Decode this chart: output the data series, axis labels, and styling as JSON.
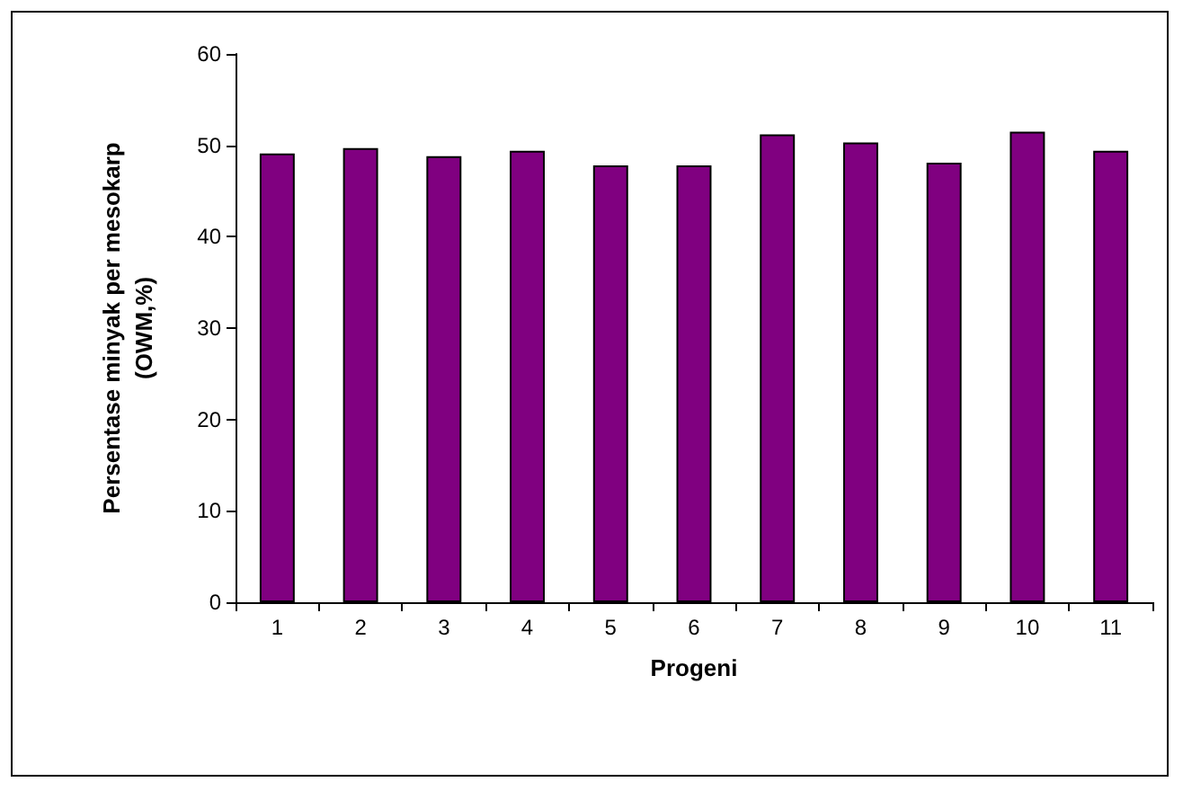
{
  "chart_data": {
    "type": "bar",
    "xlabel": "Progeni",
    "ylabel": "Persentase minyak per mesokarp\n(OWM,%)",
    "categories": [
      "1",
      "2",
      "3",
      "4",
      "5",
      "6",
      "7",
      "8",
      "9",
      "10",
      "11"
    ],
    "values": [
      49.1,
      49.7,
      48.8,
      49.4,
      47.8,
      47.8,
      51.2,
      50.3,
      48.1,
      51.5,
      49.4
    ],
    "color": "#800080",
    "ylim": [
      0,
      60
    ],
    "yticks": [
      0,
      10,
      20,
      30,
      40,
      50,
      60
    ],
    "grid": false
  }
}
